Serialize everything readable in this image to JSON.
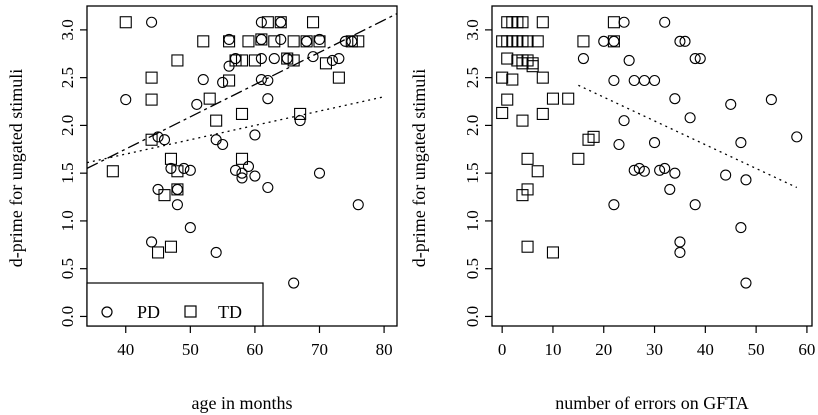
{
  "chart_data": [
    {
      "type": "scatter",
      "xlabel": "age in months",
      "ylabel": "d-prime for ungated stimuli",
      "xlim": [
        34,
        82
      ],
      "ylim": [
        -0.1,
        3.25
      ],
      "xticks": [
        40,
        50,
        60,
        70,
        80
      ],
      "yticks": [
        0.0,
        0.5,
        1.0,
        1.5,
        2.0,
        2.5,
        3.0
      ],
      "ytick_labels": [
        "0.0",
        "0.5",
        "1.0",
        "1.5",
        "2.0",
        "2.5",
        "3.0"
      ],
      "legend": {
        "position": "bottom-left",
        "entries": [
          {
            "label": "PD",
            "marker": "circle"
          },
          {
            "label": "TD",
            "marker": "square"
          }
        ]
      },
      "series": [
        {
          "name": "PD",
          "marker": "circle",
          "points": [
            [
              44,
              3.08
            ],
            [
              40,
              2.27
            ],
            [
              44,
              0.78
            ],
            [
              45,
              1.33
            ],
            [
              45,
              1.88
            ],
            [
              46,
              1.85
            ],
            [
              47,
              1.55
            ],
            [
              48,
              1.17
            ],
            [
              48,
              1.33
            ],
            [
              49,
              1.55
            ],
            [
              50,
              1.53
            ],
            [
              50,
              0.93
            ],
            [
              51,
              2.22
            ],
            [
              52,
              2.48
            ],
            [
              54,
              0.67
            ],
            [
              54,
              1.85
            ],
            [
              55,
              1.8
            ],
            [
              55,
              2.45
            ],
            [
              56,
              2.9
            ],
            [
              56,
              2.62
            ],
            [
              57,
              2.7
            ],
            [
              57,
              1.53
            ],
            [
              58,
              1.5
            ],
            [
              58,
              1.45
            ],
            [
              59,
              1.57
            ],
            [
              60,
              1.47
            ],
            [
              60,
              1.9
            ],
            [
              61,
              2.48
            ],
            [
              61,
              2.7
            ],
            [
              61,
              2.9
            ],
            [
              61,
              3.08
            ],
            [
              62,
              2.28
            ],
            [
              62,
              2.47
            ],
            [
              62,
              1.35
            ],
            [
              63,
              2.7
            ],
            [
              64,
              3.08
            ],
            [
              64,
              2.9
            ],
            [
              65,
              2.7
            ],
            [
              66,
              0.35
            ],
            [
              67,
              2.05
            ],
            [
              68,
              2.88
            ],
            [
              69,
              2.72
            ],
            [
              70,
              1.5
            ],
            [
              70,
              2.9
            ],
            [
              72,
              2.68
            ],
            [
              73,
              2.7
            ],
            [
              74,
              2.88
            ],
            [
              75,
              2.88
            ],
            [
              76,
              1.17
            ]
          ]
        },
        {
          "name": "TD",
          "marker": "square",
          "points": [
            [
              38,
              1.52
            ],
            [
              40,
              3.08
            ],
            [
              44,
              2.5
            ],
            [
              44,
              2.27
            ],
            [
              44,
              1.85
            ],
            [
              45,
              0.67
            ],
            [
              46,
              1.27
            ],
            [
              47,
              0.73
            ],
            [
              47,
              1.65
            ],
            [
              48,
              1.33
            ],
            [
              48,
              1.52
            ],
            [
              48,
              2.68
            ],
            [
              52,
              2.88
            ],
            [
              53,
              2.28
            ],
            [
              54,
              2.05
            ],
            [
              56,
              2.47
            ],
            [
              56,
              2.88
            ],
            [
              57,
              2.68
            ],
            [
              58,
              2.68
            ],
            [
              58,
              2.12
            ],
            [
              58,
              1.65
            ],
            [
              59,
              2.88
            ],
            [
              60,
              2.68
            ],
            [
              61,
              2.9
            ],
            [
              62,
              3.08
            ],
            [
              63,
              2.88
            ],
            [
              64,
              3.08
            ],
            [
              65,
              2.7
            ],
            [
              66,
              2.88
            ],
            [
              66,
              2.68
            ],
            [
              67,
              2.12
            ],
            [
              68,
              2.88
            ],
            [
              69,
              3.08
            ],
            [
              70,
              2.88
            ],
            [
              71,
              2.65
            ],
            [
              73,
              2.5
            ],
            [
              75,
              2.88
            ],
            [
              76,
              2.88
            ]
          ]
        }
      ],
      "fit_lines": [
        {
          "style": "dashed",
          "points": [
            [
              34,
              1.55
            ],
            [
              82,
              3.17
            ]
          ]
        },
        {
          "style": "dotted",
          "points": [
            [
              34,
              1.61
            ],
            [
              80,
              2.3
            ]
          ]
        }
      ]
    },
    {
      "type": "scatter",
      "xlabel": "number of errors on GFTA",
      "ylabel": "d-prime for ungated stimuli",
      "xlim": [
        -2,
        61
      ],
      "ylim": [
        -0.1,
        3.25
      ],
      "xticks": [
        0,
        10,
        20,
        30,
        40,
        50,
        60
      ],
      "yticks": [
        0.0,
        0.5,
        1.0,
        1.5,
        2.0,
        2.5,
        3.0
      ],
      "ytick_labels": [
        "0.0",
        "0.5",
        "1.0",
        "1.5",
        "2.0",
        "2.5",
        "3.0"
      ],
      "series": [
        {
          "name": "PD",
          "marker": "circle",
          "points": [
            [
              16,
              2.7
            ],
            [
              20,
              2.88
            ],
            [
              22,
              2.88
            ],
            [
              24,
              3.08
            ],
            [
              25,
              2.68
            ],
            [
              22,
              2.47
            ],
            [
              26,
              2.47
            ],
            [
              28,
              2.47
            ],
            [
              30,
              2.47
            ],
            [
              32,
              3.08
            ],
            [
              34,
              2.28
            ],
            [
              35,
              2.88
            ],
            [
              36,
              2.88
            ],
            [
              38,
              2.7
            ],
            [
              39,
              2.7
            ],
            [
              23,
              1.8
            ],
            [
              24,
              2.05
            ],
            [
              26,
              1.53
            ],
            [
              27,
              1.55
            ],
            [
              28,
              1.52
            ],
            [
              30,
              1.82
            ],
            [
              31,
              1.53
            ],
            [
              32,
              1.55
            ],
            [
              33,
              1.33
            ],
            [
              34,
              1.5
            ],
            [
              35,
              0.67
            ],
            [
              35,
              0.78
            ],
            [
              37,
              2.08
            ],
            [
              38,
              1.17
            ],
            [
              22,
              1.17
            ],
            [
              44,
              1.48
            ],
            [
              45,
              2.22
            ],
            [
              47,
              1.82
            ],
            [
              47,
              0.93
            ],
            [
              48,
              0.35
            ],
            [
              48,
              1.43
            ],
            [
              53,
              2.27
            ],
            [
              58,
              1.88
            ]
          ]
        },
        {
          "name": "TD",
          "marker": "square",
          "points": [
            [
              0,
              2.88
            ],
            [
              0,
              2.5
            ],
            [
              0,
              2.13
            ],
            [
              1,
              3.08
            ],
            [
              1,
              2.88
            ],
            [
              1,
              2.7
            ],
            [
              1,
              2.27
            ],
            [
              2,
              3.08
            ],
            [
              2,
              2.88
            ],
            [
              2,
              2.48
            ],
            [
              3,
              3.08
            ],
            [
              3,
              2.88
            ],
            [
              3,
              2.68
            ],
            [
              4,
              3.08
            ],
            [
              4,
              2.88
            ],
            [
              4,
              2.68
            ],
            [
              4,
              2.65
            ],
            [
              4,
              2.05
            ],
            [
              4,
              1.27
            ],
            [
              5,
              2.88
            ],
            [
              5,
              2.68
            ],
            [
              5,
              1.65
            ],
            [
              5,
              1.33
            ],
            [
              5,
              0.73
            ],
            [
              6,
              2.65
            ],
            [
              6,
              2.62
            ],
            [
              7,
              2.88
            ],
            [
              7,
              1.52
            ],
            [
              8,
              3.08
            ],
            [
              8,
              2.5
            ],
            [
              8,
              2.12
            ],
            [
              10,
              2.28
            ],
            [
              10,
              0.67
            ],
            [
              13,
              2.28
            ],
            [
              15,
              1.65
            ],
            [
              16,
              2.88
            ],
            [
              17,
              1.85
            ],
            [
              18,
              1.88
            ],
            [
              22,
              3.08
            ],
            [
              22,
              2.88
            ]
          ]
        }
      ],
      "fit_lines": [
        {
          "style": "dotted",
          "points": [
            [
              15,
              2.42
            ],
            [
              58,
              1.35
            ]
          ]
        }
      ]
    }
  ]
}
